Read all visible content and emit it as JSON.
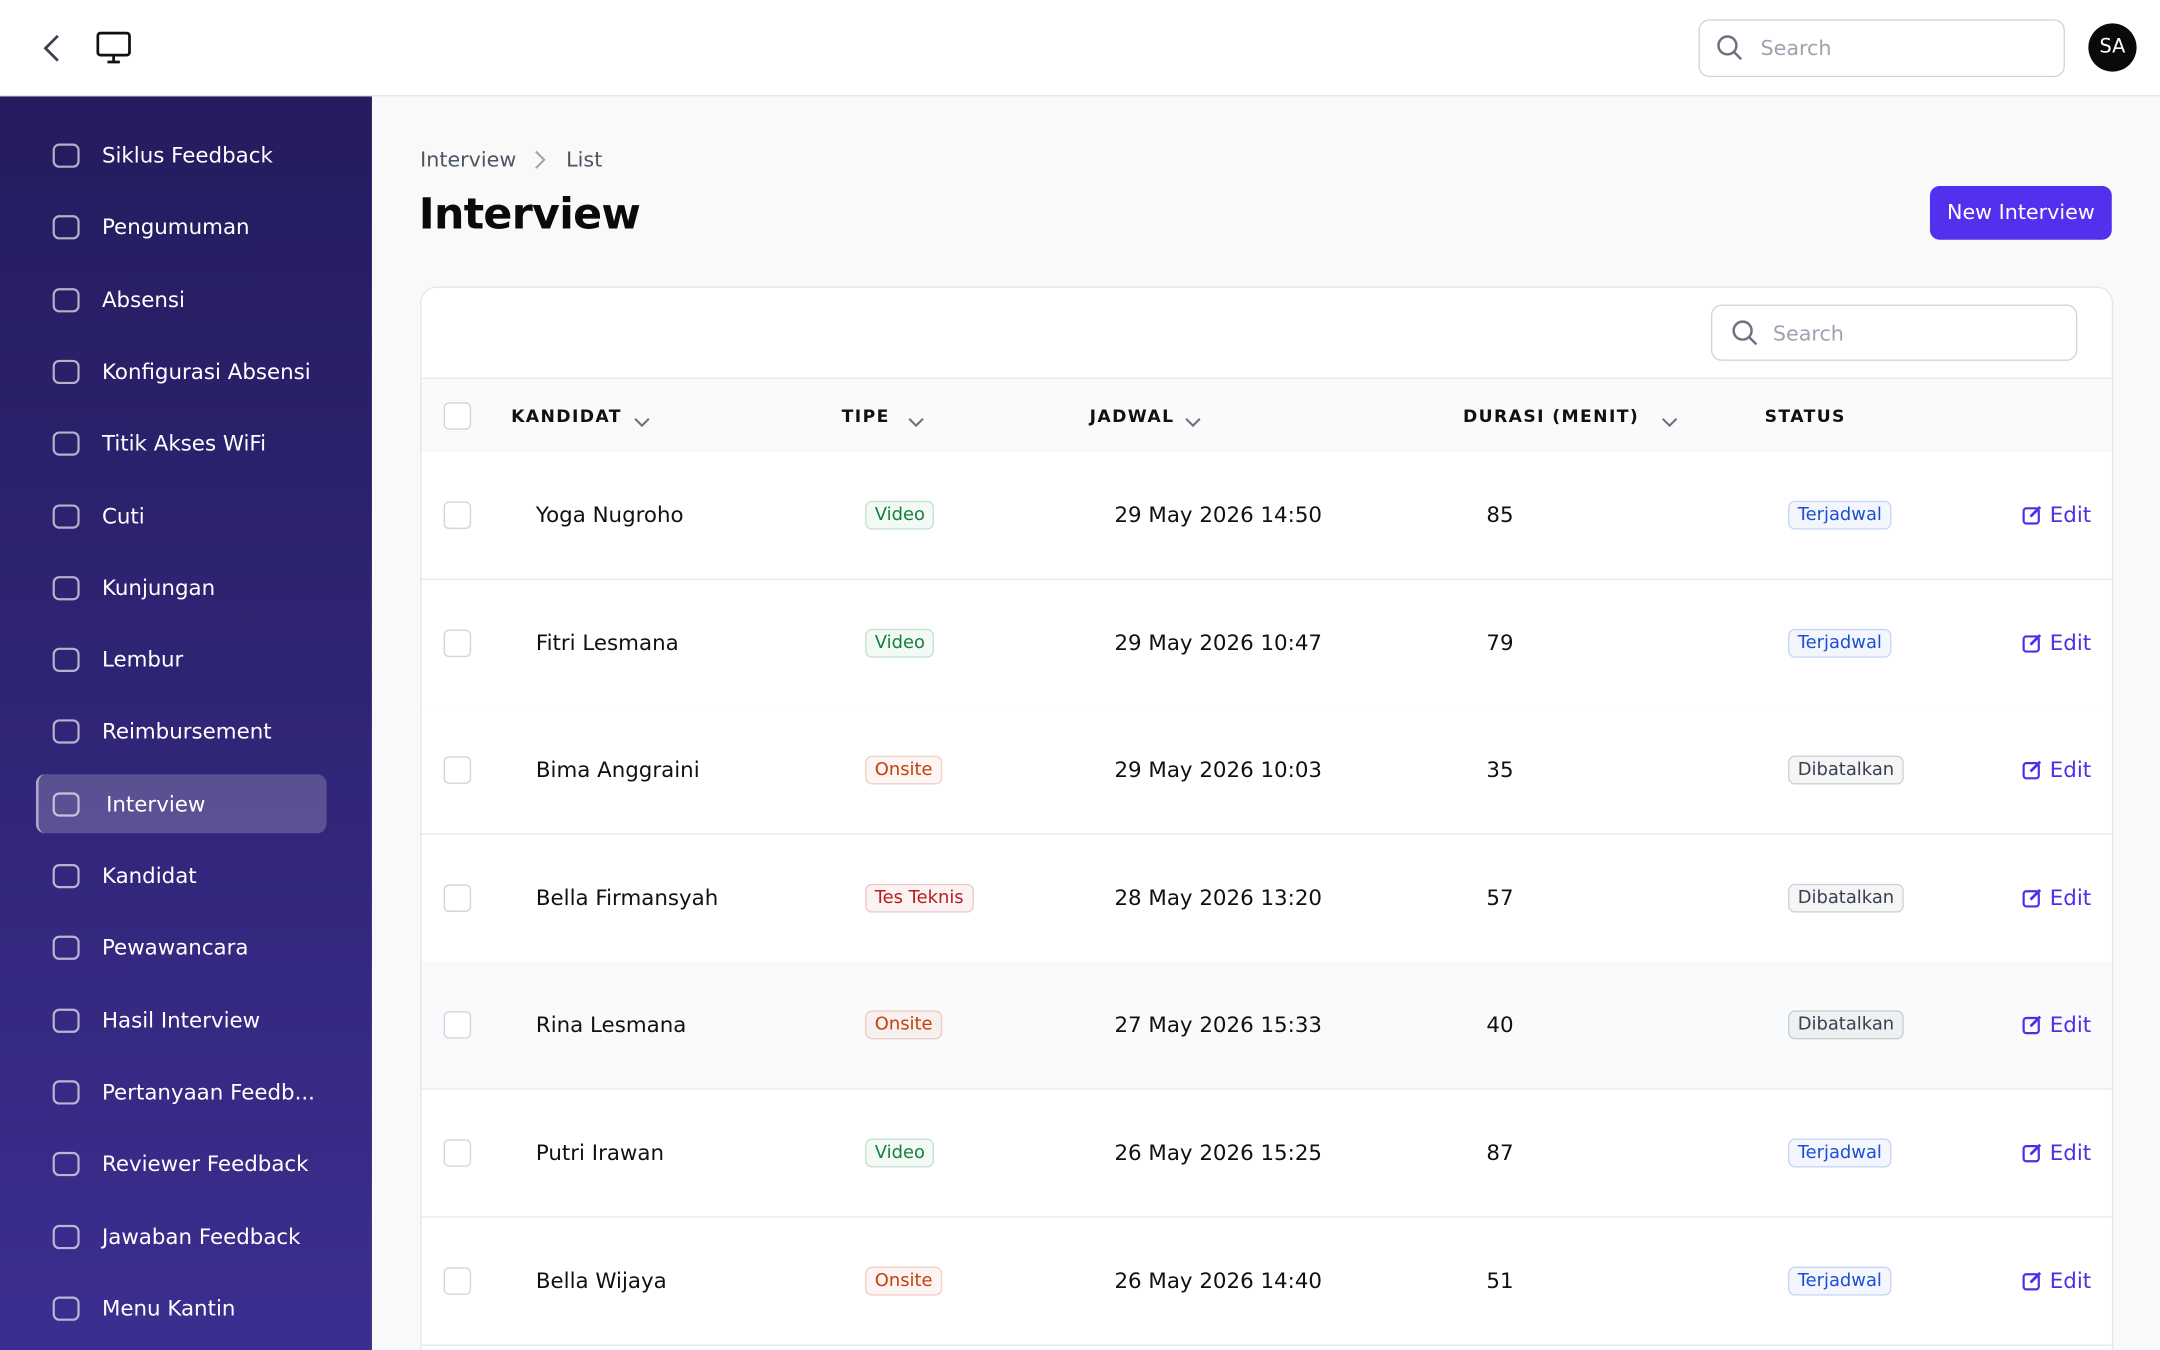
{
  "topbar": {
    "search_placeholder": "Search",
    "avatar": "SA"
  },
  "sidebar": {
    "items": [
      "Siklus Feedback",
      "Pengumuman",
      "Absensi",
      "Konfigurasi Absensi",
      "Titik Akses WiFi",
      "Cuti",
      "Kunjungan",
      "Lembur",
      "Reimbursement",
      "Interview",
      "Kandidat",
      "Pewawancara",
      "Hasil Interview",
      "Pertanyaan Feedb...",
      "Reviewer Feedback",
      "Jawaban Feedback",
      "Menu Kantin"
    ],
    "active": 9
  },
  "breadcrumb": [
    "Interview",
    "List"
  ],
  "header": {
    "title": "Interview",
    "button": "New Interview"
  },
  "table": {
    "search_placeholder": "Search",
    "action": "Edit",
    "columns": [
      "KANDIDAT",
      "TIPE",
      "JADWAL",
      "DURASI (MENIT)",
      "STATUS"
    ],
    "rows": [
      {
        "kandidat": "Yoga Nugroho",
        "tipe": "Video",
        "tipe_color": "#15803d",
        "jadwal": "29 May 2026 14:50",
        "durasi": 85,
        "status": "Terjadwal",
        "status_color": "#1d4ed8"
      },
      {
        "kandidat": "Fitri Lesmana",
        "tipe": "Video",
        "tipe_color": "#15803d",
        "jadwal": "29 May 2026 10:47",
        "durasi": 79,
        "status": "Terjadwal",
        "status_color": "#1d4ed8"
      },
      {
        "kandidat": "Bima Anggraini",
        "tipe": "Onsite",
        "tipe_color": "#c2410c",
        "jadwal": "29 May 2026 10:03",
        "durasi": 35,
        "status": "Dibatalkan",
        "status_color": "#374151"
      },
      {
        "kandidat": "Bella Firmansyah",
        "tipe": "Tes Teknis",
        "tipe_color": "#b91c1c",
        "jadwal": "28 May 2026 13:20",
        "durasi": 57,
        "status": "Dibatalkan",
        "status_color": "#374151"
      },
      {
        "kandidat": "Rina Lesmana",
        "tipe": "Onsite",
        "tipe_color": "#c2410c",
        "jadwal": "27 May 2026 15:33",
        "durasi": 40,
        "status": "Dibatalkan",
        "status_color": "#374151"
      },
      {
        "kandidat": "Putri Irawan",
        "tipe": "Video",
        "tipe_color": "#15803d",
        "jadwal": "26 May 2026 15:25",
        "durasi": 87,
        "status": "Terjadwal",
        "status_color": "#1d4ed8"
      },
      {
        "kandidat": "Bella Wijaya",
        "tipe": "Onsite",
        "tipe_color": "#c2410c",
        "jadwal": "26 May 2026 14:40",
        "durasi": 51,
        "status": "Terjadwal",
        "status_color": "#1d4ed8"
      }
    ]
  }
}
